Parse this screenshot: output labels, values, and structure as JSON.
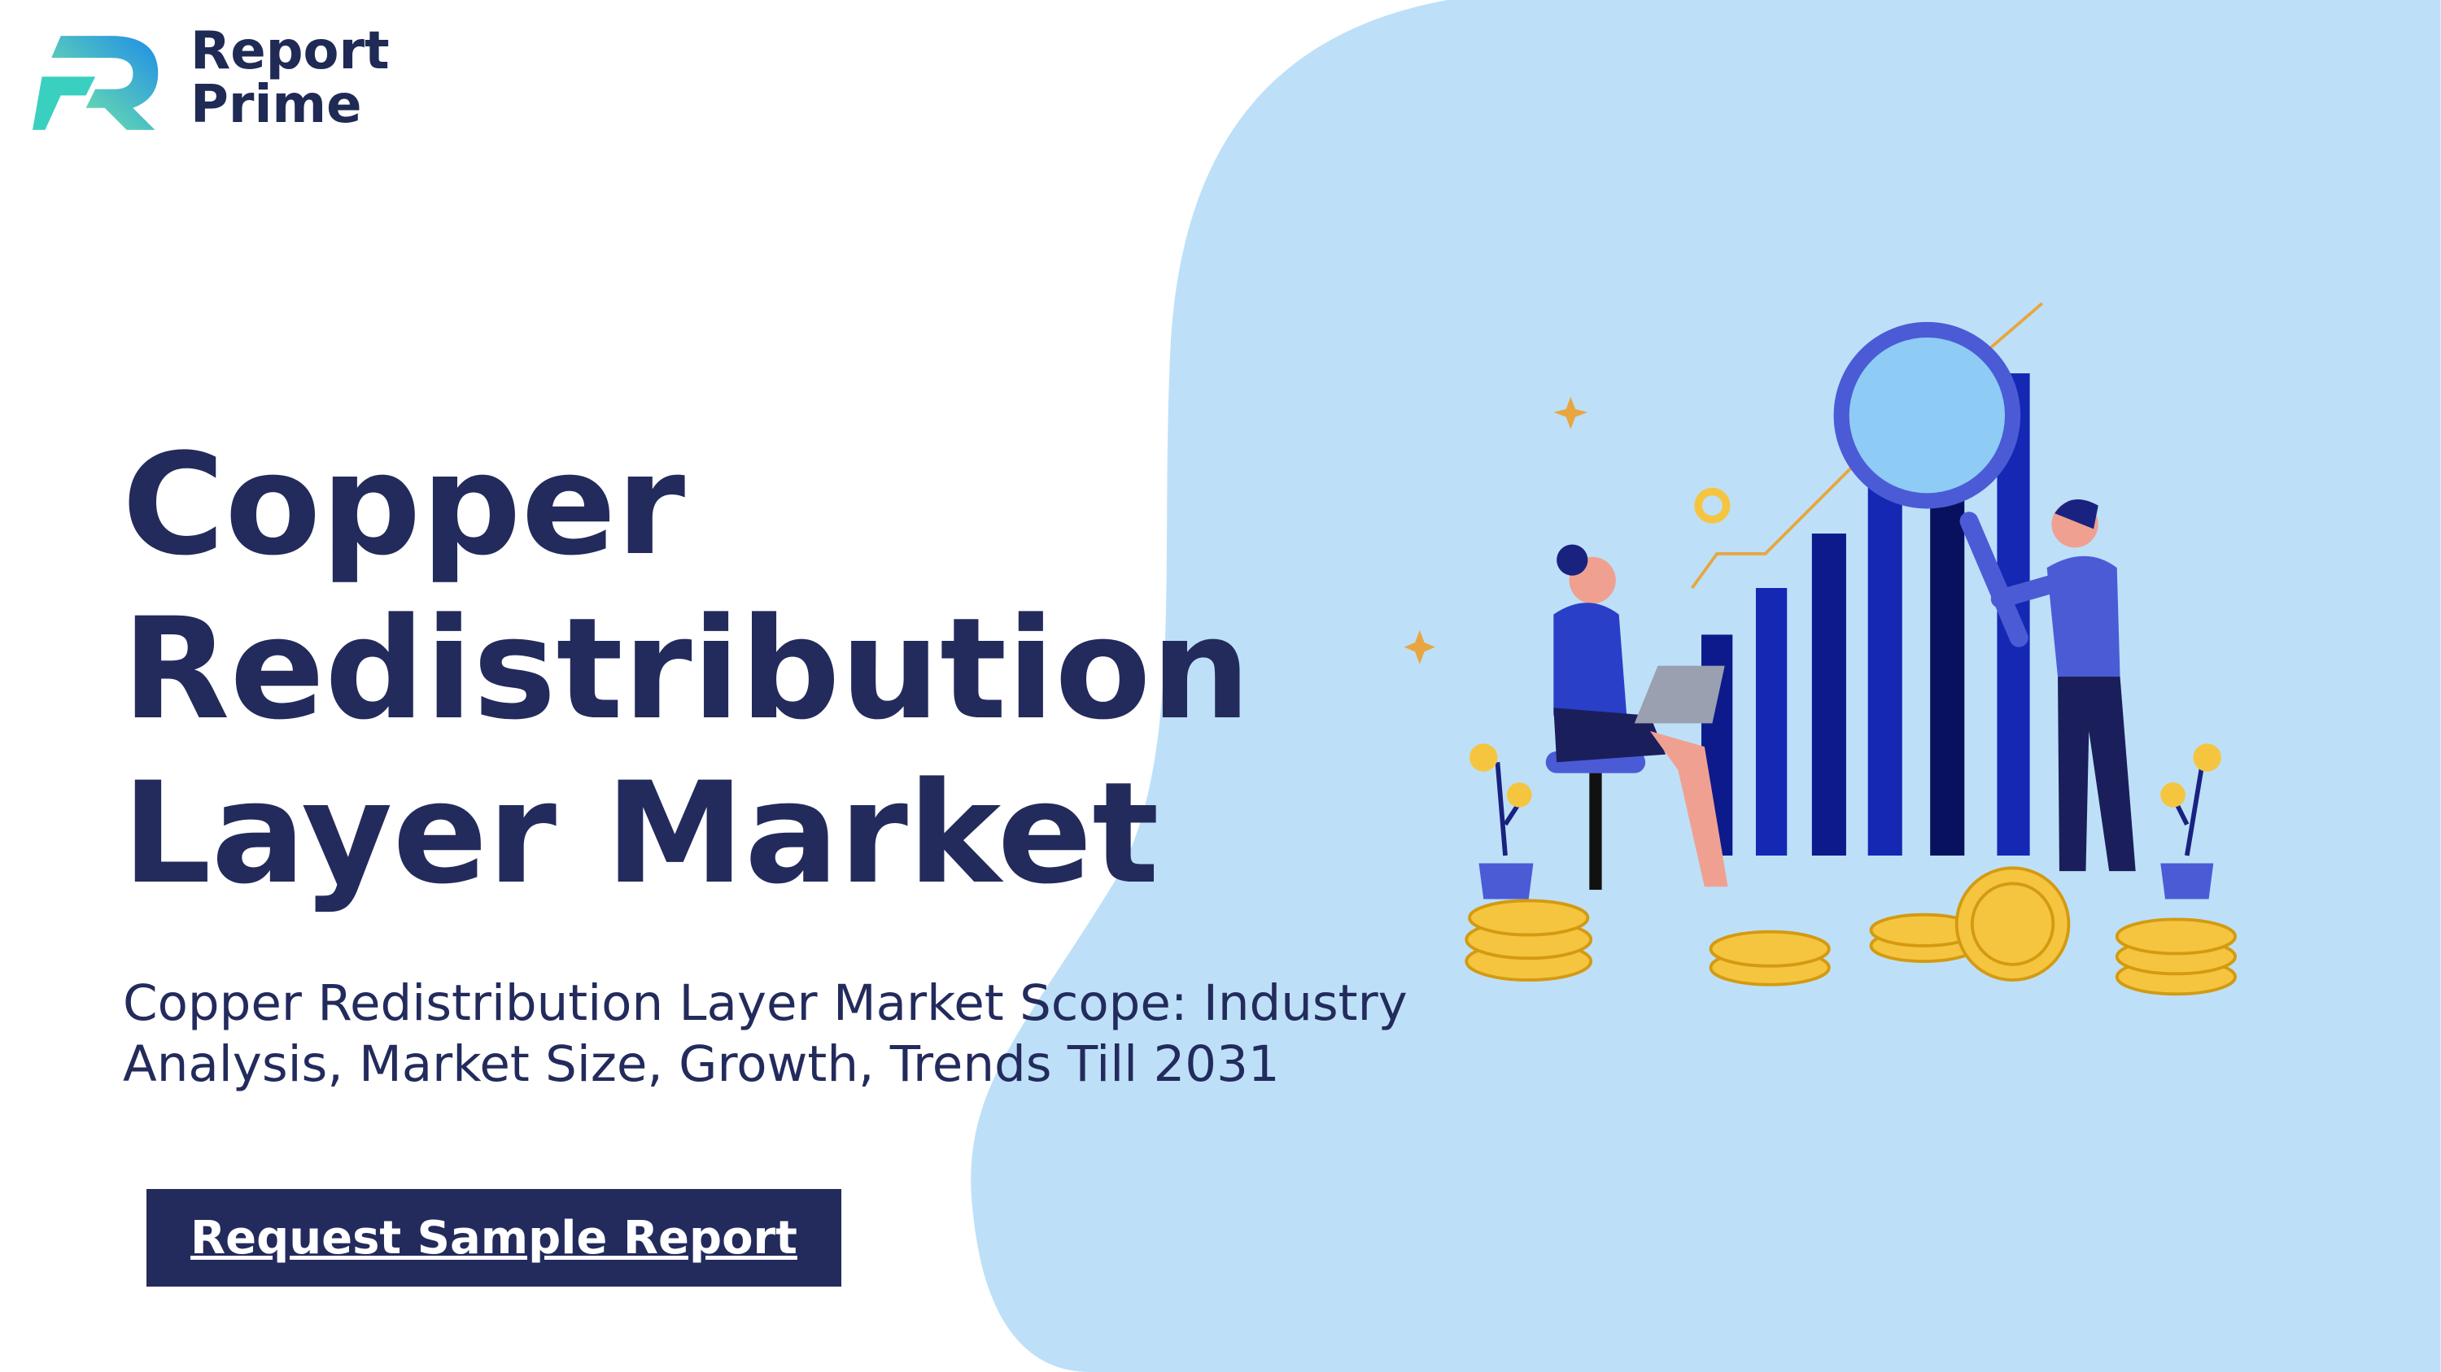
{
  "logo": {
    "line1": "Report",
    "line2": "Prime"
  },
  "title": "Copper Redistribution Layer Market",
  "subtitle": "Copper Redistribution Layer Market Scope: Industry Analysis, Market Size, Growth, Trends Till 2031",
  "button": "Request Sample Report"
}
